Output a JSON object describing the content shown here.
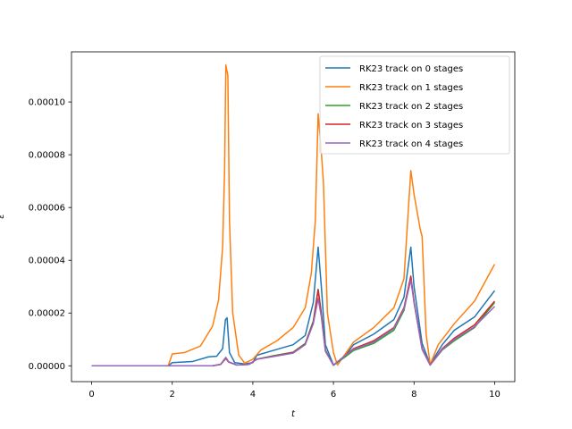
{
  "chart_data": {
    "type": "line",
    "title": "",
    "xlabel": "t",
    "ylabel": "ε",
    "xlim": [
      -0.5,
      10.5
    ],
    "ylim": [
      -6e-06,
      0.000119
    ],
    "x_ticks": [
      0,
      2,
      4,
      6,
      8,
      10
    ],
    "x_tick_labels": [
      "0",
      "2",
      "4",
      "6",
      "8",
      "10"
    ],
    "y_ticks": [
      0,
      2e-05,
      4e-05,
      6e-05,
      8e-05,
      0.0001
    ],
    "y_tick_labels": [
      "0.00000",
      "0.00002",
      "0.00004",
      "0.00006",
      "0.00008",
      "0.00010"
    ],
    "grid": false,
    "legend_position": "top-right",
    "series": [
      {
        "name": "RK23 track on 0 stages",
        "color": "#1f77b4",
        "points": [
          [
            0,
            0
          ],
          [
            1.9,
            0
          ],
          [
            2.0,
            1.2e-06
          ],
          [
            2.5,
            1.6e-06
          ],
          [
            2.9,
            3.4e-06
          ],
          [
            3.1,
            3.6e-06
          ],
          [
            3.25,
            6.5e-06
          ],
          [
            3.32,
            1.75e-05
          ],
          [
            3.36,
            1.82e-05
          ],
          [
            3.42,
            5e-06
          ],
          [
            3.55,
            1.2e-06
          ],
          [
            3.8,
            7e-07
          ],
          [
            4.0,
            1.2e-06
          ],
          [
            4.1,
            4e-06
          ],
          [
            4.5,
            5.8e-06
          ],
          [
            5.0,
            8e-06
          ],
          [
            5.3,
            1.15e-05
          ],
          [
            5.5,
            2.4e-05
          ],
          [
            5.62,
            4.5e-05
          ],
          [
            5.7,
            3e-05
          ],
          [
            5.8,
            8e-06
          ],
          [
            6.0,
            3e-07
          ],
          [
            6.3,
            4e-06
          ],
          [
            6.5,
            8e-06
          ],
          [
            7.0,
            1.2e-05
          ],
          [
            7.5,
            1.75e-05
          ],
          [
            7.75,
            2.6e-05
          ],
          [
            7.92,
            4.5e-05
          ],
          [
            8.0,
            3e-05
          ],
          [
            8.2,
            8.5e-06
          ],
          [
            8.4,
            5e-07
          ],
          [
            8.7,
            8e-06
          ],
          [
            9.0,
            1.35e-05
          ],
          [
            9.5,
            1.85e-05
          ],
          [
            10.0,
            2.85e-05
          ]
        ]
      },
      {
        "name": "RK23 track on 1 stages",
        "color": "#ff7f0e",
        "points": [
          [
            0,
            0
          ],
          [
            1.9,
            0
          ],
          [
            2.0,
            4.5e-06
          ],
          [
            2.3,
            5e-06
          ],
          [
            2.7,
            7.5e-06
          ],
          [
            3.0,
            1.5e-05
          ],
          [
            3.15,
            2.5e-05
          ],
          [
            3.25,
            4.5e-05
          ],
          [
            3.3,
            7.5e-05
          ],
          [
            3.33,
            0.000114
          ],
          [
            3.38,
            0.00011
          ],
          [
            3.42,
            5.5e-05
          ],
          [
            3.5,
            2e-05
          ],
          [
            3.65,
            4e-06
          ],
          [
            3.8,
            1e-06
          ],
          [
            4.0,
            2.5e-06
          ],
          [
            4.2,
            6e-06
          ],
          [
            4.6,
            9.5e-06
          ],
          [
            5.0,
            1.45e-05
          ],
          [
            5.3,
            2.2e-05
          ],
          [
            5.45,
            3.5e-05
          ],
          [
            5.55,
            5.5e-05
          ],
          [
            5.62,
            9.55e-05
          ],
          [
            5.68,
            8.5e-05
          ],
          [
            5.75,
            7e-05
          ],
          [
            5.85,
            2e-05
          ],
          [
            6.0,
            5e-06
          ],
          [
            6.1,
            3e-07
          ],
          [
            6.5,
            9e-06
          ],
          [
            7.0,
            1.45e-05
          ],
          [
            7.5,
            2.2e-05
          ],
          [
            7.75,
            3.3e-05
          ],
          [
            7.92,
            7.4e-05
          ],
          [
            8.0,
            6.5e-05
          ],
          [
            8.15,
            5.2e-05
          ],
          [
            8.2,
            4.9e-05
          ],
          [
            8.3,
            1.2e-05
          ],
          [
            8.4,
            5e-07
          ],
          [
            8.6,
            8e-06
          ],
          [
            9.0,
            1.6e-05
          ],
          [
            9.5,
            2.45e-05
          ],
          [
            10.0,
            3.85e-05
          ]
        ]
      },
      {
        "name": "RK23 track on 2 stages",
        "color": "#2ca02c",
        "points": [
          [
            0,
            0
          ],
          [
            3.0,
            0
          ],
          [
            3.2,
            5e-07
          ],
          [
            3.33,
            3e-06
          ],
          [
            3.4,
            1.5e-06
          ],
          [
            3.6,
            3e-07
          ],
          [
            3.9,
            5e-07
          ],
          [
            4.1,
            2.5e-06
          ],
          [
            4.5,
            3.8e-06
          ],
          [
            5.0,
            5.2e-06
          ],
          [
            5.3,
            8.5e-06
          ],
          [
            5.5,
            1.7e-05
          ],
          [
            5.62,
            2.9e-05
          ],
          [
            5.7,
            2e-05
          ],
          [
            5.8,
            6e-06
          ],
          [
            6.0,
            2e-07
          ],
          [
            6.3,
            3.5e-06
          ],
          [
            6.5,
            5.8e-06
          ],
          [
            7.0,
            8.5e-06
          ],
          [
            7.5,
            1.35e-05
          ],
          [
            7.75,
            2.1e-05
          ],
          [
            7.92,
            3.35e-05
          ],
          [
            8.0,
            2.4e-05
          ],
          [
            8.2,
            6.5e-06
          ],
          [
            8.4,
            3e-07
          ],
          [
            8.7,
            6e-06
          ],
          [
            9.0,
            9.5e-06
          ],
          [
            9.5,
            1.45e-05
          ],
          [
            10.0,
            2.4e-05
          ]
        ]
      },
      {
        "name": "RK23 track on 3 stages",
        "color": "#d62728",
        "points": [
          [
            0,
            0
          ],
          [
            3.0,
            0
          ],
          [
            3.2,
            5e-07
          ],
          [
            3.33,
            2.8e-06
          ],
          [
            3.4,
            1.4e-06
          ],
          [
            3.6,
            3e-07
          ],
          [
            3.9,
            5e-07
          ],
          [
            4.1,
            2.5e-06
          ],
          [
            4.5,
            3.6e-06
          ],
          [
            5.0,
            5e-06
          ],
          [
            5.3,
            8.2e-06
          ],
          [
            5.5,
            1.65e-05
          ],
          [
            5.62,
            2.88e-05
          ],
          [
            5.7,
            1.95e-05
          ],
          [
            5.8,
            5.8e-06
          ],
          [
            6.0,
            2e-07
          ],
          [
            6.3,
            4e-06
          ],
          [
            6.5,
            6.5e-06
          ],
          [
            7.0,
            9.5e-06
          ],
          [
            7.5,
            1.45e-05
          ],
          [
            7.75,
            2.2e-05
          ],
          [
            7.92,
            3.4e-05
          ],
          [
            8.0,
            2.45e-05
          ],
          [
            8.2,
            6.5e-06
          ],
          [
            8.4,
            3e-07
          ],
          [
            8.7,
            6.5e-06
          ],
          [
            9.0,
            1.05e-05
          ],
          [
            9.5,
            1.55e-05
          ],
          [
            10.0,
            2.45e-05
          ]
        ]
      },
      {
        "name": "RK23 track on 4 stages",
        "color": "#9467bd",
        "points": [
          [
            0,
            0
          ],
          [
            3.0,
            0
          ],
          [
            3.2,
            6e-07
          ],
          [
            3.33,
            3.2e-06
          ],
          [
            3.4,
            1.5e-06
          ],
          [
            3.6,
            3e-07
          ],
          [
            3.9,
            5e-07
          ],
          [
            4.1,
            2.5e-06
          ],
          [
            4.5,
            3.5e-06
          ],
          [
            5.0,
            4.8e-06
          ],
          [
            5.3,
            8e-06
          ],
          [
            5.5,
            1.6e-05
          ],
          [
            5.62,
            2.55e-05
          ],
          [
            5.7,
            1.85e-05
          ],
          [
            5.8,
            5.5e-06
          ],
          [
            6.0,
            2e-07
          ],
          [
            6.3,
            4e-06
          ],
          [
            6.5,
            6.2e-06
          ],
          [
            7.0,
            9e-06
          ],
          [
            7.5,
            1.42e-05
          ],
          [
            7.75,
            2.15e-05
          ],
          [
            7.92,
            3.25e-05
          ],
          [
            8.0,
            2.4e-05
          ],
          [
            8.2,
            6.2e-06
          ],
          [
            8.4,
            3e-07
          ],
          [
            8.7,
            6.2e-06
          ],
          [
            9.0,
            1e-05
          ],
          [
            9.5,
            1.48e-05
          ],
          [
            10.0,
            2.25e-05
          ]
        ]
      }
    ]
  }
}
